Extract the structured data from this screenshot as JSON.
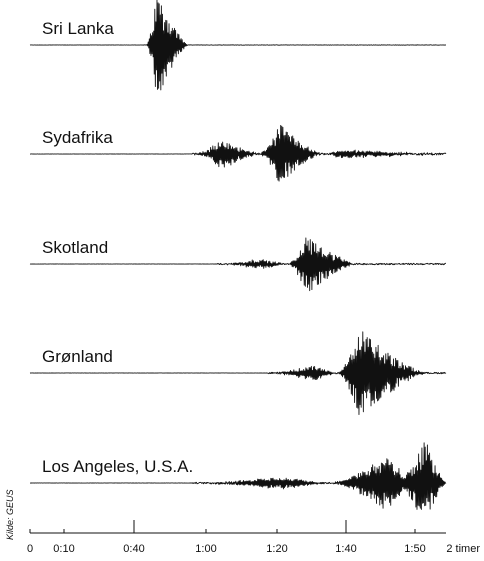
{
  "chart_data": {
    "type": "line",
    "title": "",
    "xlabel": "",
    "ylabel": "",
    "source": "Kilde: GEUS",
    "x_ticks": [
      "0",
      "0:10",
      "0:40",
      "1:00",
      "1:20",
      "1:40",
      "1:50",
      "2 timer"
    ],
    "colors": {
      "trace": "#111111",
      "axis": "#111111"
    },
    "grid": false,
    "series": [
      {
        "name": "Sri Lanka",
        "bursts": [
          {
            "start": 0.28,
            "peak": 0.305,
            "end": 0.38,
            "amplitude": 55
          }
        ],
        "noise": 0.4
      },
      {
        "name": "Sydafrika",
        "bursts": [
          {
            "start": 0.4,
            "peak": 0.46,
            "end": 0.55,
            "amplitude": 15
          },
          {
            "start": 0.55,
            "peak": 0.6,
            "end": 0.7,
            "amplitude": 30
          },
          {
            "start": 0.7,
            "peak": 0.75,
            "end": 1.0,
            "amplitude": 4
          }
        ],
        "noise": 2
      },
      {
        "name": "Skotland",
        "bursts": [
          {
            "start": 0.46,
            "peak": 0.55,
            "end": 0.62,
            "amplitude": 5
          },
          {
            "start": 0.62,
            "peak": 0.665,
            "end": 0.78,
            "amplitude": 30
          }
        ],
        "noise": 1.5
      },
      {
        "name": "Grønland",
        "bursts": [
          {
            "start": 0.58,
            "peak": 0.68,
            "end": 0.74,
            "amplitude": 8
          },
          {
            "start": 0.74,
            "peak": 0.79,
            "end": 0.95,
            "amplitude": 45
          }
        ],
        "noise": 1.5
      },
      {
        "name": "Los Angeles, U.S.A.",
        "bursts": [
          {
            "start": 0.4,
            "peak": 0.6,
            "end": 0.72,
            "amplitude": 6
          },
          {
            "start": 0.72,
            "peak": 0.86,
            "end": 0.92,
            "amplitude": 30
          },
          {
            "start": 0.88,
            "peak": 0.95,
            "end": 1.0,
            "amplitude": 45
          }
        ],
        "noise": 1.5
      }
    ]
  }
}
